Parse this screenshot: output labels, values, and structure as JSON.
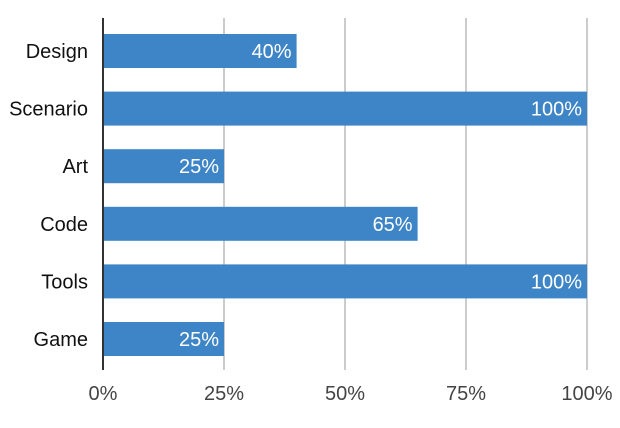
{
  "chart_data": {
    "type": "bar",
    "orientation": "horizontal",
    "categories": [
      "Design",
      "Scenario",
      "Art",
      "Code",
      "Tools",
      "Game"
    ],
    "values": [
      40,
      100,
      25,
      65,
      100,
      25
    ],
    "data_labels": [
      "40%",
      "100%",
      "25%",
      "65%",
      "100%",
      "25%"
    ],
    "xlim": [
      0,
      100
    ],
    "x_ticks": [
      0,
      25,
      50,
      75,
      100
    ],
    "x_tick_labels": [
      "0%",
      "25%",
      "50%",
      "75%",
      "100%"
    ],
    "title": "",
    "xlabel": "",
    "ylabel": "",
    "grid": true,
    "legend": "none",
    "bar_color": "#3d85c6",
    "grid_color": "#cccccc",
    "axis_color": "#333333"
  }
}
